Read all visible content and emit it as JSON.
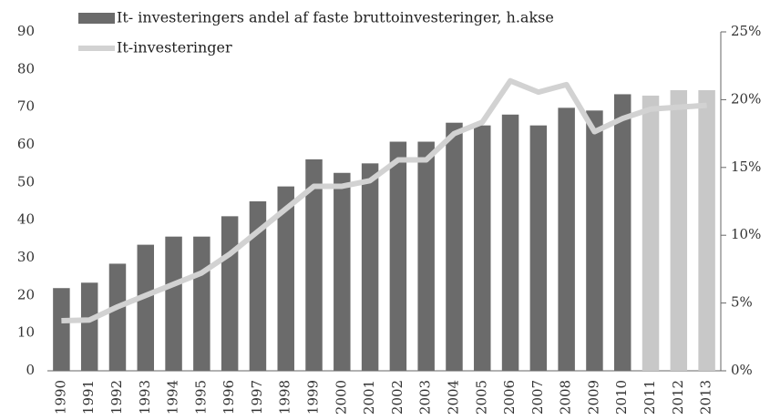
{
  "chart_data": {
    "type": "bar_line",
    "categories": [
      "1990",
      "1991",
      "1992",
      "1993",
      "1994",
      "1995",
      "1996",
      "1997",
      "1998",
      "1999",
      "2000",
      "2001",
      "2002",
      "2003",
      "2004",
      "2005",
      "2006",
      "2007",
      "2008",
      "2009",
      "2010",
      "2011",
      "2012",
      "2013"
    ],
    "series": [
      {
        "name": "It- investeringers andel af faste bruttoinvesteringer, h.akse",
        "type": "bar",
        "axis": "y2",
        "color": "#6b6b6b",
        "colors": [
          "#6b6b6b",
          "#6b6b6b",
          "#6b6b6b",
          "#6b6b6b",
          "#6b6b6b",
          "#6b6b6b",
          "#6b6b6b",
          "#6b6b6b",
          "#6b6b6b",
          "#6b6b6b",
          "#6b6b6b",
          "#6b6b6b",
          "#6b6b6b",
          "#6b6b6b",
          "#6b6b6b",
          "#6b6b6b",
          "#6b6b6b",
          "#6b6b6b",
          "#6b6b6b",
          "#6b6b6b",
          "#6b6b6b",
          "#c8c8c8",
          "#c8c8c8",
          "#c8c8c8"
        ],
        "values": [
          6.1,
          6.5,
          7.9,
          9.3,
          9.9,
          9.9,
          11.4,
          12.5,
          13.6,
          15.6,
          14.6,
          15.3,
          16.9,
          16.9,
          18.3,
          18.1,
          18.9,
          18.1,
          19.4,
          19.2,
          20.4,
          20.3,
          20.7,
          20.7
        ]
      },
      {
        "name": "It-investeringer",
        "type": "line",
        "axis": "y",
        "color": "#d2d2d2",
        "values": [
          13.3,
          13.5,
          17,
          20,
          23,
          26,
          31,
          37,
          43,
          49,
          49,
          50.5,
          56,
          56,
          63,
          66,
          77,
          74,
          76,
          63.5,
          67,
          69.5,
          70,
          70.5
        ]
      }
    ],
    "ylim": [
      0,
      90
    ],
    "yticks": [
      0,
      10,
      20,
      30,
      40,
      50,
      60,
      70,
      80,
      90
    ],
    "y2lim": [
      0,
      25
    ],
    "y2ticks": [
      {
        "value": 0,
        "label": "0%"
      },
      {
        "value": 5,
        "label": "5%"
      },
      {
        "value": 10,
        "label": "10%"
      },
      {
        "value": 15,
        "label": "15%"
      },
      {
        "value": 20,
        "label": "20%"
      },
      {
        "value": 25,
        "label": "25%"
      }
    ],
    "grid": false,
    "legend": "top-left"
  }
}
